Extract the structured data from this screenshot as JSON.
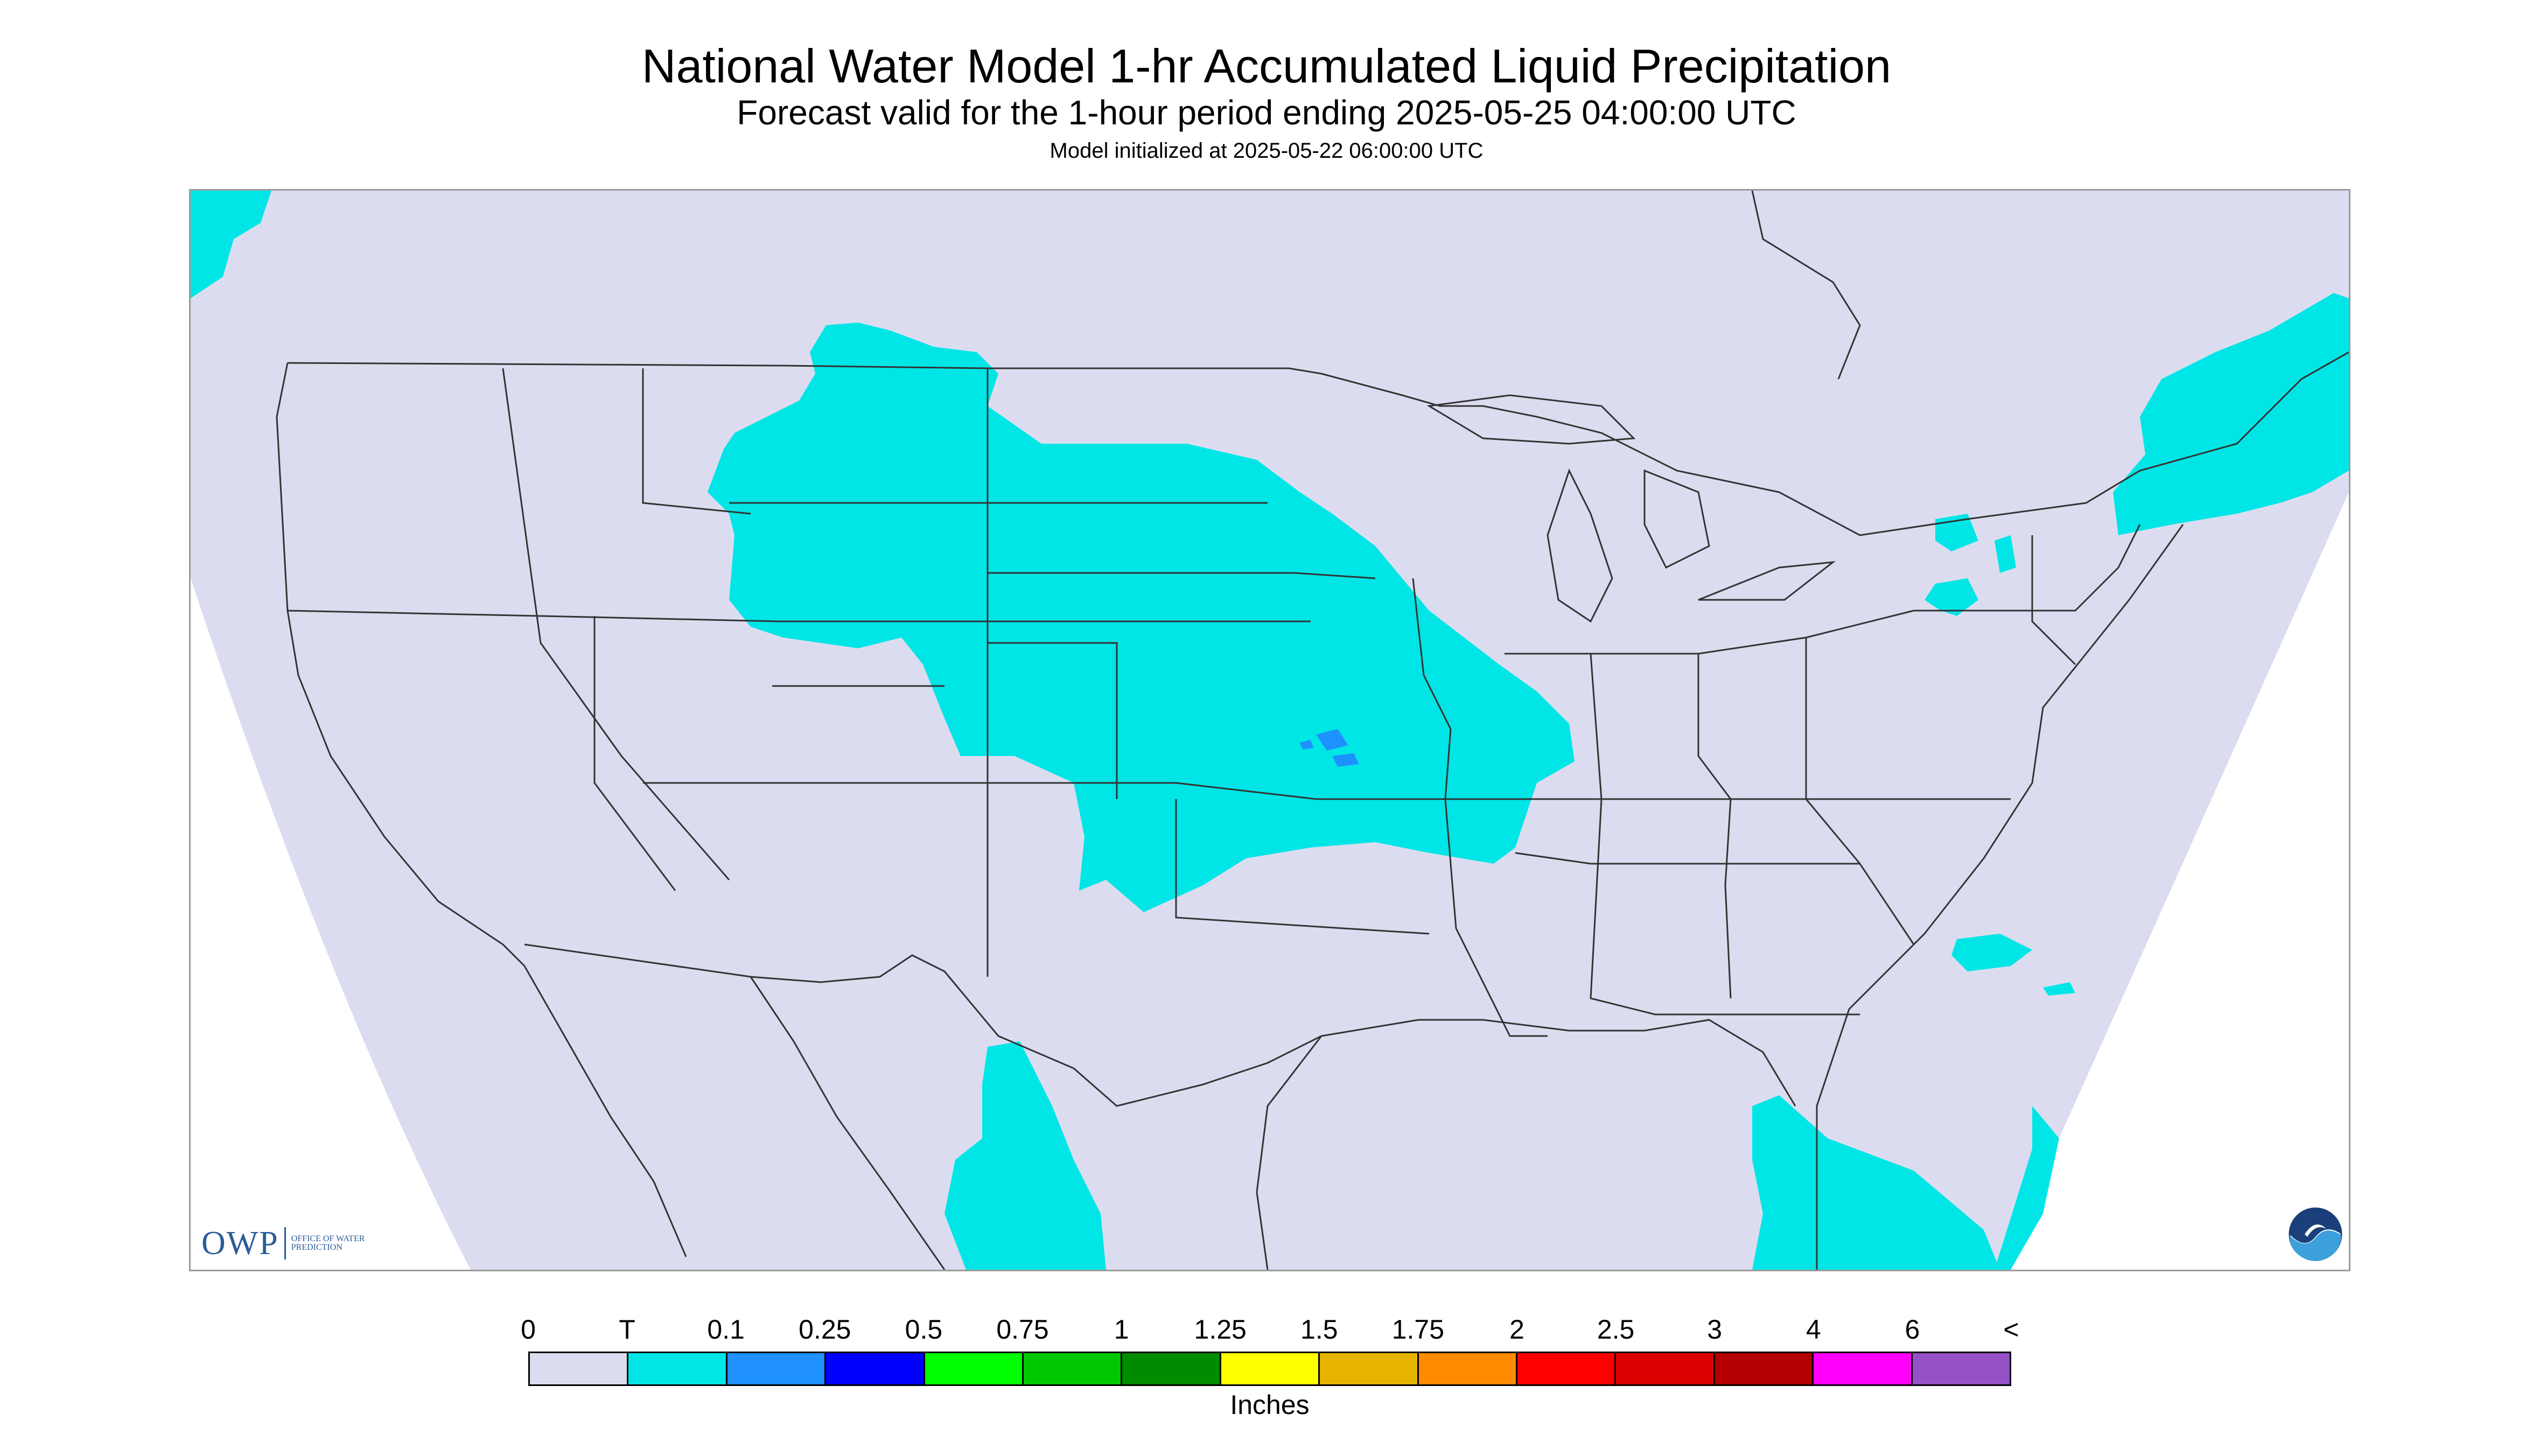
{
  "title": "National Water Model 1-hr Accumulated Liquid Precipitation",
  "subtitle": "Forecast valid for the 1-hour period ending 2025-05-25 04:00:00 UTC",
  "init_text": "Model initialized at 2025-05-22 06:00:00 UTC",
  "map": {
    "background_color": "#dcdcf0",
    "outside_color": "#ffffff",
    "border_color": "#333333",
    "precip_colors": {
      "trace": "#00e6e6",
      "light": "#1e90ff"
    }
  },
  "logos": {
    "owp_word": "OWP",
    "owp_sub": "Office of Water Prediction",
    "noaa_text": "NOAA"
  },
  "legend": {
    "labels": [
      "0",
      "T",
      "0.1",
      "0.25",
      "0.5",
      "0.75",
      "1",
      "1.25",
      "1.5",
      "1.75",
      "2",
      "2.5",
      "3",
      "4",
      "6",
      "<"
    ],
    "colors": [
      "#dcdcf0",
      "#00e6e6",
      "#1e90ff",
      "#0000ff",
      "#00ff00",
      "#00c800",
      "#008c00",
      "#ffff00",
      "#e6b400",
      "#ff8c00",
      "#ff0000",
      "#dc0000",
      "#b40000",
      "#ff00ff",
      "#9650c8"
    ],
    "units": "Inches"
  }
}
